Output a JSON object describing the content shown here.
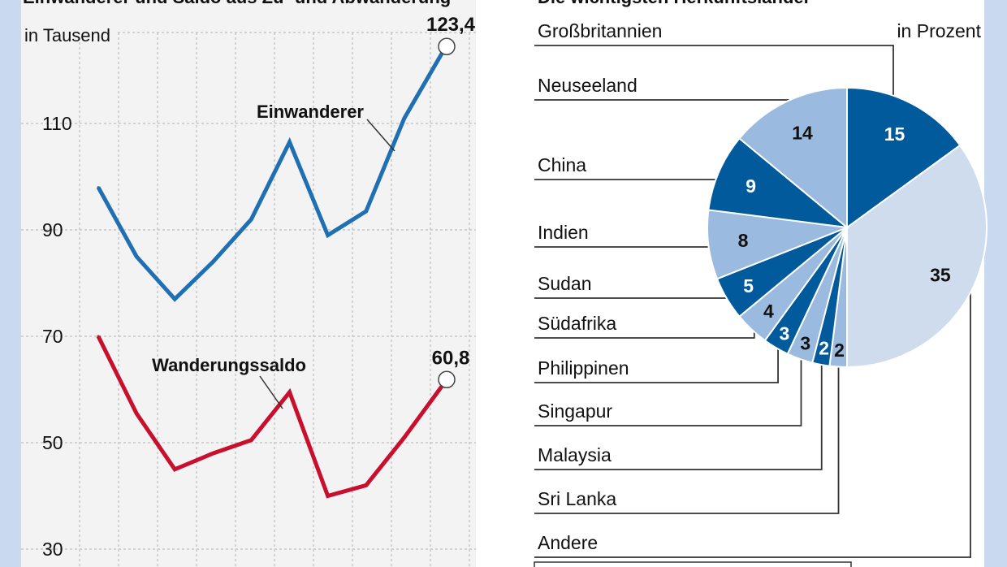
{
  "colors": {
    "frame": "#c9daf0",
    "panel": "#f3f3f3",
    "line_blue": "#1f6fb2",
    "line_red": "#c8102e",
    "dark_blue": "#005a9c",
    "light_blue": "#9bbadf",
    "pale_blue": "#cfdcee"
  },
  "chart_data": [
    {
      "type": "line",
      "title": "Einwanderer und Saldo aus Zu- und Abwanderung",
      "ylabel": "in Tausend",
      "ylim": [
        30,
        135
      ],
      "yticks": [
        30,
        50,
        70,
        90,
        110
      ],
      "x": [
        1,
        2,
        3,
        4,
        5,
        6,
        7,
        8,
        9,
        10
      ],
      "series": [
        {
          "name": "Einwanderer",
          "color": "#1f6fb2",
          "values": [
            98,
            85,
            77,
            84,
            92,
            106.5,
            89,
            93.5,
            111,
            123.4
          ],
          "end_label": "123,4"
        },
        {
          "name": "Wanderungssaldo",
          "color": "#c8102e",
          "values": [
            70,
            55.5,
            45,
            48,
            50.5,
            59.5,
            40,
            42,
            51,
            60.8
          ],
          "end_label": "60,8"
        }
      ]
    },
    {
      "type": "pie",
      "title": "Die wichtigsten Herkunftsländer",
      "unit_label": "in Prozent",
      "slices": [
        {
          "label": "Großbritannien",
          "value": 15,
          "display": "15",
          "color": "#005a9c"
        },
        {
          "label": "Andere",
          "value": 35,
          "display": "35",
          "color": "#cfdcee"
        },
        {
          "label": "Sri Lanka",
          "value": 2,
          "display": "2",
          "color": "#9bbadf"
        },
        {
          "label": "Malaysia",
          "value": 2,
          "display": "2",
          "color": "#005a9c"
        },
        {
          "label": "Singapur",
          "value": 3,
          "display": "3",
          "color": "#9bbadf"
        },
        {
          "label": "Philippinen",
          "value": 3,
          "display": "3",
          "color": "#005a9c"
        },
        {
          "label": "Südafrika",
          "value": 4,
          "display": "4",
          "color": "#9bbadf"
        },
        {
          "label": "Sudan",
          "value": 5,
          "display": "5",
          "color": "#005a9c"
        },
        {
          "label": "Indien",
          "value": 8,
          "display": "8",
          "color": "#9bbadf"
        },
        {
          "label": "China",
          "value": 9,
          "display": "9",
          "color": "#005a9c"
        },
        {
          "label": "Neuseeland",
          "value": 14,
          "display": "14",
          "color": "#9bbadf"
        }
      ],
      "legend_order": [
        "Großbritannien",
        "Neuseeland",
        "China",
        "Indien",
        "Sudan",
        "Südafrika",
        "Philippinen",
        "Singapur",
        "Malaysia",
        "Sri Lanka",
        "Andere"
      ]
    }
  ]
}
